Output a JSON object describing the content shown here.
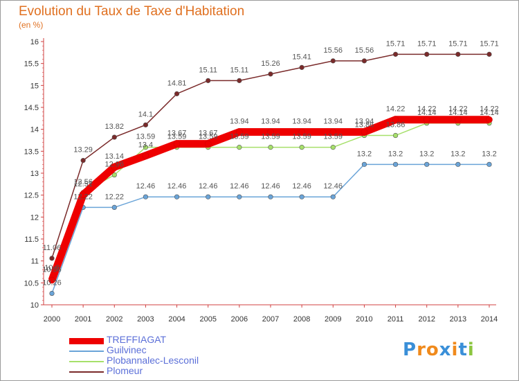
{
  "header": {
    "title": "Evolution du Taux de Taxe d'Habitation",
    "unit": "(en %)"
  },
  "logo": {
    "text": "Proxiti",
    "colors": [
      "#3a8fd8",
      "#f08a1c",
      "#f08a1c",
      "#3a8fd8",
      "#f08a1c",
      "#3a8fd8",
      "#8cc63f"
    ]
  },
  "chart_data": {
    "type": "line",
    "title": "Evolution du Taux de Taxe d'Habitation",
    "ylabel": "(en %)",
    "x": [
      "2000",
      "2001",
      "2002",
      "2003",
      "2004",
      "2005",
      "2006",
      "2007",
      "2008",
      "2009",
      "2010",
      "2011",
      "2012",
      "2013",
      "2014"
    ],
    "yticks": [
      "10",
      "10.5",
      "11",
      "11.5",
      "12",
      "12.5",
      "13",
      "13.5",
      "14",
      "14.5",
      "15",
      "15.5",
      "16"
    ],
    "ylim": [
      10,
      16
    ],
    "grid": false,
    "legend_position": "bottom",
    "series": [
      {
        "name": "TREFFIAGAT",
        "color": "#ee0000",
        "values": [
          10.56,
          12.51,
          13.14,
          13.4,
          13.67,
          13.67,
          13.94,
          13.94,
          13.94,
          13.94,
          13.94,
          14.22,
          14.22,
          14.22,
          14.22
        ],
        "labels": [
          "10.56",
          "12.51",
          "13.14",
          "13.4",
          "13.67",
          "13.67",
          "13.94",
          "13.94",
          "13.94",
          "13.94",
          "13.94",
          "14.22",
          "14.22",
          "14.22",
          "14.22"
        ]
      },
      {
        "name": "Guilvinec",
        "color": "#6aa4d8",
        "values": [
          10.26,
          12.22,
          12.22,
          12.46,
          12.46,
          12.46,
          12.46,
          12.46,
          12.46,
          12.46,
          13.2,
          13.2,
          13.2,
          13.2,
          13.2
        ],
        "labels": [
          "10.26",
          "12.22",
          "12.22",
          "12.46",
          "12.46",
          "12.46",
          "12.46",
          "12.46",
          "12.46",
          "12.46",
          "13.2",
          "13.2",
          "13.2",
          "13.2",
          "13.2"
        ]
      },
      {
        "name": "Plobannalec-Lesconil",
        "color": "#a6e06a",
        "values": [
          10.6,
          12.56,
          12.96,
          13.59,
          13.59,
          13.59,
          13.59,
          13.59,
          13.59,
          13.59,
          13.86,
          13.86,
          14.14,
          14.14,
          14.14
        ],
        "labels": [
          "10.6",
          "12.56",
          "12.96",
          "13.59",
          "13.59",
          "13.59",
          "13.59",
          "13.59",
          "13.59",
          "13.59",
          "13.86",
          "13.86",
          "14.14",
          "14.14",
          "14.14"
        ]
      },
      {
        "name": "Plomeur",
        "color": "#7a2a2a",
        "values": [
          11.06,
          13.29,
          13.82,
          14.1,
          14.81,
          15.11,
          15.11,
          15.26,
          15.41,
          15.56,
          15.56,
          15.71,
          15.71,
          15.71,
          15.71
        ],
        "labels": [
          "11.06",
          "13.29",
          "13.82",
          "14.1",
          "14.81",
          "15.11",
          "15.11",
          "15.26",
          "15.41",
          "15.56",
          "15.56",
          "15.71",
          "15.71",
          "15.71",
          "15.71"
        ]
      }
    ]
  }
}
